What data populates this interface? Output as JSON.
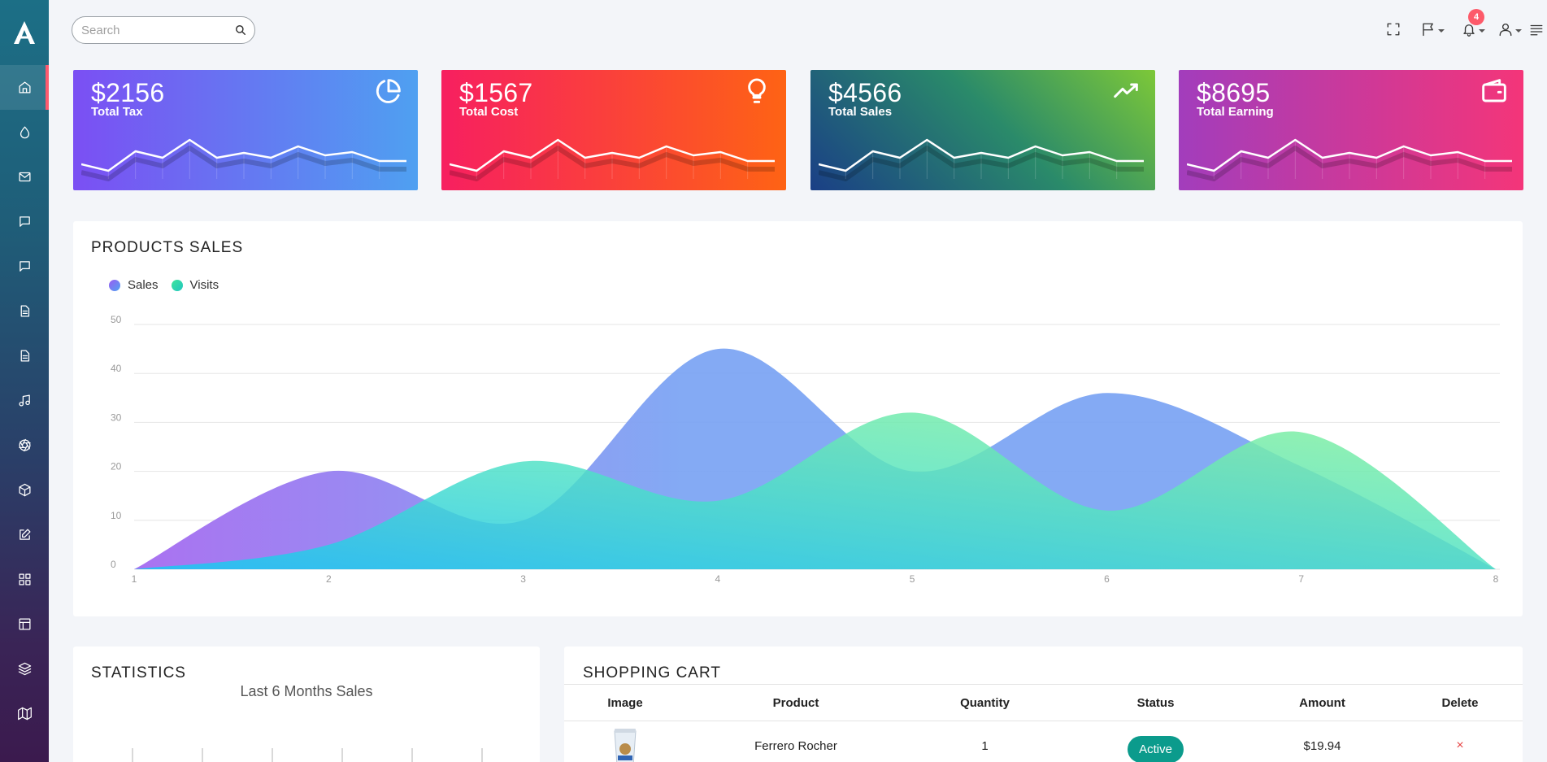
{
  "app": {
    "logo_icon": "app-logo-a-icon"
  },
  "sidebar": {
    "items": [
      {
        "name": "home",
        "icon": "home-icon"
      },
      {
        "name": "ui-elements",
        "icon": "droplet-icon"
      },
      {
        "name": "mail",
        "icon": "mail-icon"
      },
      {
        "name": "chat",
        "icon": "chat-icon"
      },
      {
        "name": "messages",
        "icon": "message-icon"
      },
      {
        "name": "documents",
        "icon": "document-icon"
      },
      {
        "name": "pages",
        "icon": "file-text-icon"
      },
      {
        "name": "music",
        "icon": "music-icon"
      },
      {
        "name": "aperture",
        "icon": "aperture-icon"
      },
      {
        "name": "packages",
        "icon": "box-icon"
      },
      {
        "name": "forms",
        "icon": "edit-icon"
      },
      {
        "name": "apps",
        "icon": "grid-icon"
      },
      {
        "name": "layouts",
        "icon": "layout-icon"
      },
      {
        "name": "layers",
        "icon": "layers-icon"
      },
      {
        "name": "maps",
        "icon": "map-icon"
      }
    ]
  },
  "search": {
    "placeholder": "Search",
    "value": ""
  },
  "topbar": {
    "notification_count": "4"
  },
  "cards": [
    {
      "amount": "$2156",
      "label": "Total Tax",
      "icon": "pie-chart-icon",
      "colors": [
        "#7b4ff3",
        "#4fa0f1"
      ]
    },
    {
      "amount": "$1567",
      "label": "Total Cost",
      "icon": "lightbulb-icon",
      "colors": [
        "#f71f60",
        "#fe6314"
      ]
    },
    {
      "amount": "$4566",
      "label": "Total Sales",
      "icon": "trending-up-icon",
      "colors": [
        "#1a3f86",
        "#7dc838"
      ]
    },
    {
      "amount": "$8695",
      "label": "Total Earning",
      "icon": "wallet-icon",
      "colors": [
        "#a23dbc",
        "#f43579"
      ]
    }
  ],
  "sparkline": [
    22,
    14,
    38,
    30,
    52,
    30,
    36,
    30,
    44,
    33,
    37,
    26,
    26
  ],
  "products_sales": {
    "title": "PRODUCTS SALES",
    "legend": [
      {
        "name": "Sales",
        "color": "#7a6cf0"
      },
      {
        "name": "Visits",
        "color": "#2fd3a8"
      }
    ]
  },
  "chart_data": {
    "type": "area",
    "x": [
      1,
      2,
      3,
      4,
      5,
      6,
      7,
      8
    ],
    "ylim": [
      0,
      50
    ],
    "yticks": [
      0,
      10,
      20,
      30,
      40,
      50
    ],
    "series": [
      {
        "name": "Sales",
        "values": [
          0,
          20,
          10,
          45,
          20,
          36,
          21,
          0
        ]
      },
      {
        "name": "Visits",
        "values": [
          0,
          5,
          22,
          14,
          32,
          12,
          28,
          0
        ]
      }
    ],
    "grid": true,
    "legend_position": "top-left"
  },
  "statistics": {
    "title": "STATISTICS",
    "subtitle": "Last 6 Months Sales"
  },
  "cart": {
    "title": "SHOPPING CART",
    "headers": [
      "Image",
      "Product",
      "Quantity",
      "Status",
      "Amount",
      "Delete"
    ],
    "rows": [
      {
        "product": "Ferrero Rocher",
        "quantity": "1",
        "status": "Active",
        "amount": "$19.94",
        "delete": "×"
      }
    ]
  }
}
